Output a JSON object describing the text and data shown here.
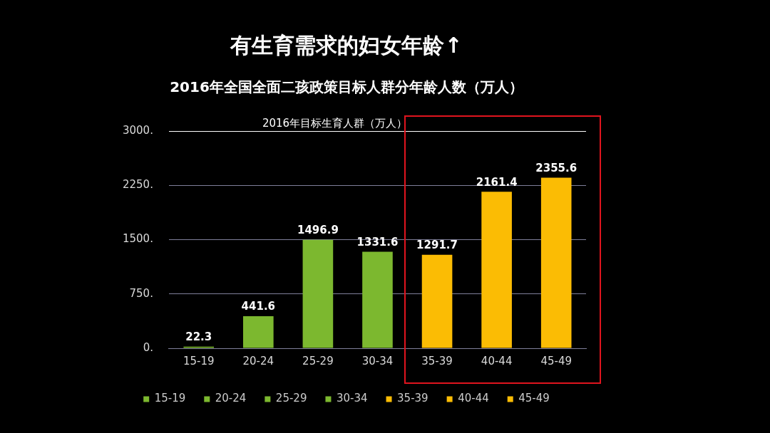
{
  "chart_data": {
    "type": "bar",
    "title": "有生育需求的妇女年龄↑",
    "subtitle": "2016年全国全面二孩政策目标人群分年龄人数（万人）",
    "annotations": [
      "2016年目标生育人群（万人）"
    ],
    "categories": [
      "15-19",
      "20-24",
      "25-29",
      "30-34",
      "35-39",
      "40-44",
      "45-49"
    ],
    "series": [
      {
        "name": "15-19",
        "color": "#7cb82f",
        "values": [
          22.3,
          null,
          null,
          null,
          null,
          null,
          null
        ]
      },
      {
        "name": "20-24",
        "color": "#7cb82f",
        "values": [
          null,
          441.6,
          null,
          null,
          null,
          null,
          null
        ]
      },
      {
        "name": "25-29",
        "color": "#7cb82f",
        "values": [
          null,
          null,
          1496.9,
          null,
          null,
          null,
          null
        ]
      },
      {
        "name": "30-34",
        "color": "#7cb82f",
        "values": [
          null,
          null,
          null,
          1331.6,
          null,
          null,
          null
        ]
      },
      {
        "name": "35-39",
        "color": "#fbbc04",
        "values": [
          null,
          null,
          null,
          null,
          1291.7,
          null,
          null
        ]
      },
      {
        "name": "40-44",
        "color": "#fbbc04",
        "values": [
          null,
          null,
          null,
          null,
          null,
          2161.4,
          null
        ]
      },
      {
        "name": "45-49",
        "color": "#fbbc04",
        "values": [
          null,
          null,
          null,
          null,
          null,
          null,
          2355.6
        ]
      }
    ],
    "ylim": [
      0,
      3000
    ],
    "yticks": [
      {
        "value": 0,
        "label": "0."
      },
      {
        "value": 750,
        "label": "750."
      },
      {
        "value": 1500,
        "label": "1500."
      },
      {
        "value": 2250,
        "label": "2250."
      },
      {
        "value": 3000,
        "label": "3000."
      }
    ],
    "grid": "y",
    "legend": "bottom",
    "data_labels": true
  }
}
